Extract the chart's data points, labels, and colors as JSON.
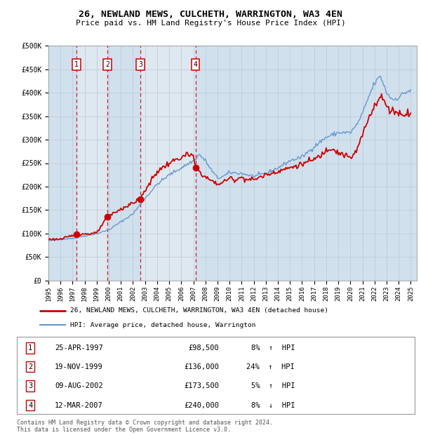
{
  "title": "26, NEWLAND MEWS, CULCHETH, WARRINGTON, WA3 4EN",
  "subtitle": "Price paid vs. HM Land Registry's House Price Index (HPI)",
  "ylim": [
    0,
    500000
  ],
  "yticks": [
    0,
    50000,
    100000,
    150000,
    200000,
    250000,
    300000,
    350000,
    400000,
    450000,
    500000
  ],
  "ytick_labels": [
    "£0",
    "£50K",
    "£100K",
    "£150K",
    "£200K",
    "£250K",
    "£300K",
    "£350K",
    "£400K",
    "£450K",
    "£500K"
  ],
  "xlim_start": 1995.0,
  "xlim_end": 2025.5,
  "sale_color": "#cc0000",
  "hpi_color": "#6699cc",
  "sale_label": "26, NEWLAND MEWS, CULCHETH, WARRINGTON, WA3 4EN (detached house)",
  "hpi_label": "HPI: Average price, detached house, Warrington",
  "transactions": [
    {
      "num": 1,
      "date_str": "25-APR-1997",
      "date_x": 1997.32,
      "price": 98500,
      "pct": "8%",
      "dir": "↑"
    },
    {
      "num": 2,
      "date_str": "19-NOV-1999",
      "date_x": 1999.88,
      "price": 136000,
      "pct": "24%",
      "dir": "↑"
    },
    {
      "num": 3,
      "date_str": "09-AUG-2002",
      "date_x": 2002.61,
      "price": 173500,
      "pct": "5%",
      "dir": "↑"
    },
    {
      "num": 4,
      "date_str": "12-MAR-2007",
      "date_x": 2007.19,
      "price": 240000,
      "pct": "8%",
      "dir": "↓"
    }
  ],
  "footer": "Contains HM Land Registry data © Crown copyright and database right 2024.\nThis data is licensed under the Open Government Licence v3.0.",
  "background_color": "#ffffff",
  "plot_bg_color": "#dde8f0",
  "hpi_anchors": {
    "1995.0": 85000,
    "1996.0": 88000,
    "1997.0": 90000,
    "1998.0": 95000,
    "1999.0": 100000,
    "2000.0": 108000,
    "2001.0": 125000,
    "2002.0": 142000,
    "2003.0": 175000,
    "2004.0": 205000,
    "2005.0": 225000,
    "2006.0": 240000,
    "2007.0": 255000,
    "2007.5": 268000,
    "2008.0": 255000,
    "2008.5": 235000,
    "2009.0": 218000,
    "2009.5": 222000,
    "2010.0": 230000,
    "2011.0": 228000,
    "2012.0": 222000,
    "2013.0": 228000,
    "2014.0": 240000,
    "2015.0": 255000,
    "2016.0": 263000,
    "2017.0": 285000,
    "2018.0": 305000,
    "2019.0": 315000,
    "2020.0": 315000,
    "2020.5": 330000,
    "2021.0": 355000,
    "2021.5": 390000,
    "2022.0": 420000,
    "2022.5": 435000,
    "2023.0": 400000,
    "2023.5": 385000,
    "2024.0": 390000,
    "2024.5": 400000,
    "2025.0": 405000
  },
  "sale_anchors": {
    "1995.0": 88000,
    "1996.0": 88000,
    "1997.32": 98500,
    "1998.0": 99000,
    "1999.0": 101000,
    "1999.88": 136000,
    "2001.0": 152000,
    "2002.61": 173500,
    "2003.0": 192000,
    "2004.0": 232000,
    "2005.0": 250000,
    "2006.0": 262000,
    "2006.5": 268000,
    "2007.0": 265000,
    "2007.19": 240000,
    "2008.0": 220000,
    "2009.0": 205000,
    "2009.5": 210000,
    "2010.0": 218000,
    "2010.5": 215000,
    "2011.0": 220000,
    "2011.5": 215000,
    "2012.0": 215000,
    "2013.0": 225000,
    "2014.0": 233000,
    "2015.0": 240000,
    "2016.0": 248000,
    "2017.0": 258000,
    "2017.5": 265000,
    "2018.0": 278000,
    "2018.5": 283000,
    "2019.0": 272000,
    "2019.5": 268000,
    "2020.0": 260000,
    "2020.5": 275000,
    "2021.0": 310000,
    "2021.5": 345000,
    "2022.0": 375000,
    "2022.5": 390000,
    "2022.8": 385000,
    "2023.0": 370000,
    "2023.3": 360000,
    "2023.5": 365000,
    "2024.0": 355000,
    "2024.5": 355000,
    "2025.0": 358000
  }
}
